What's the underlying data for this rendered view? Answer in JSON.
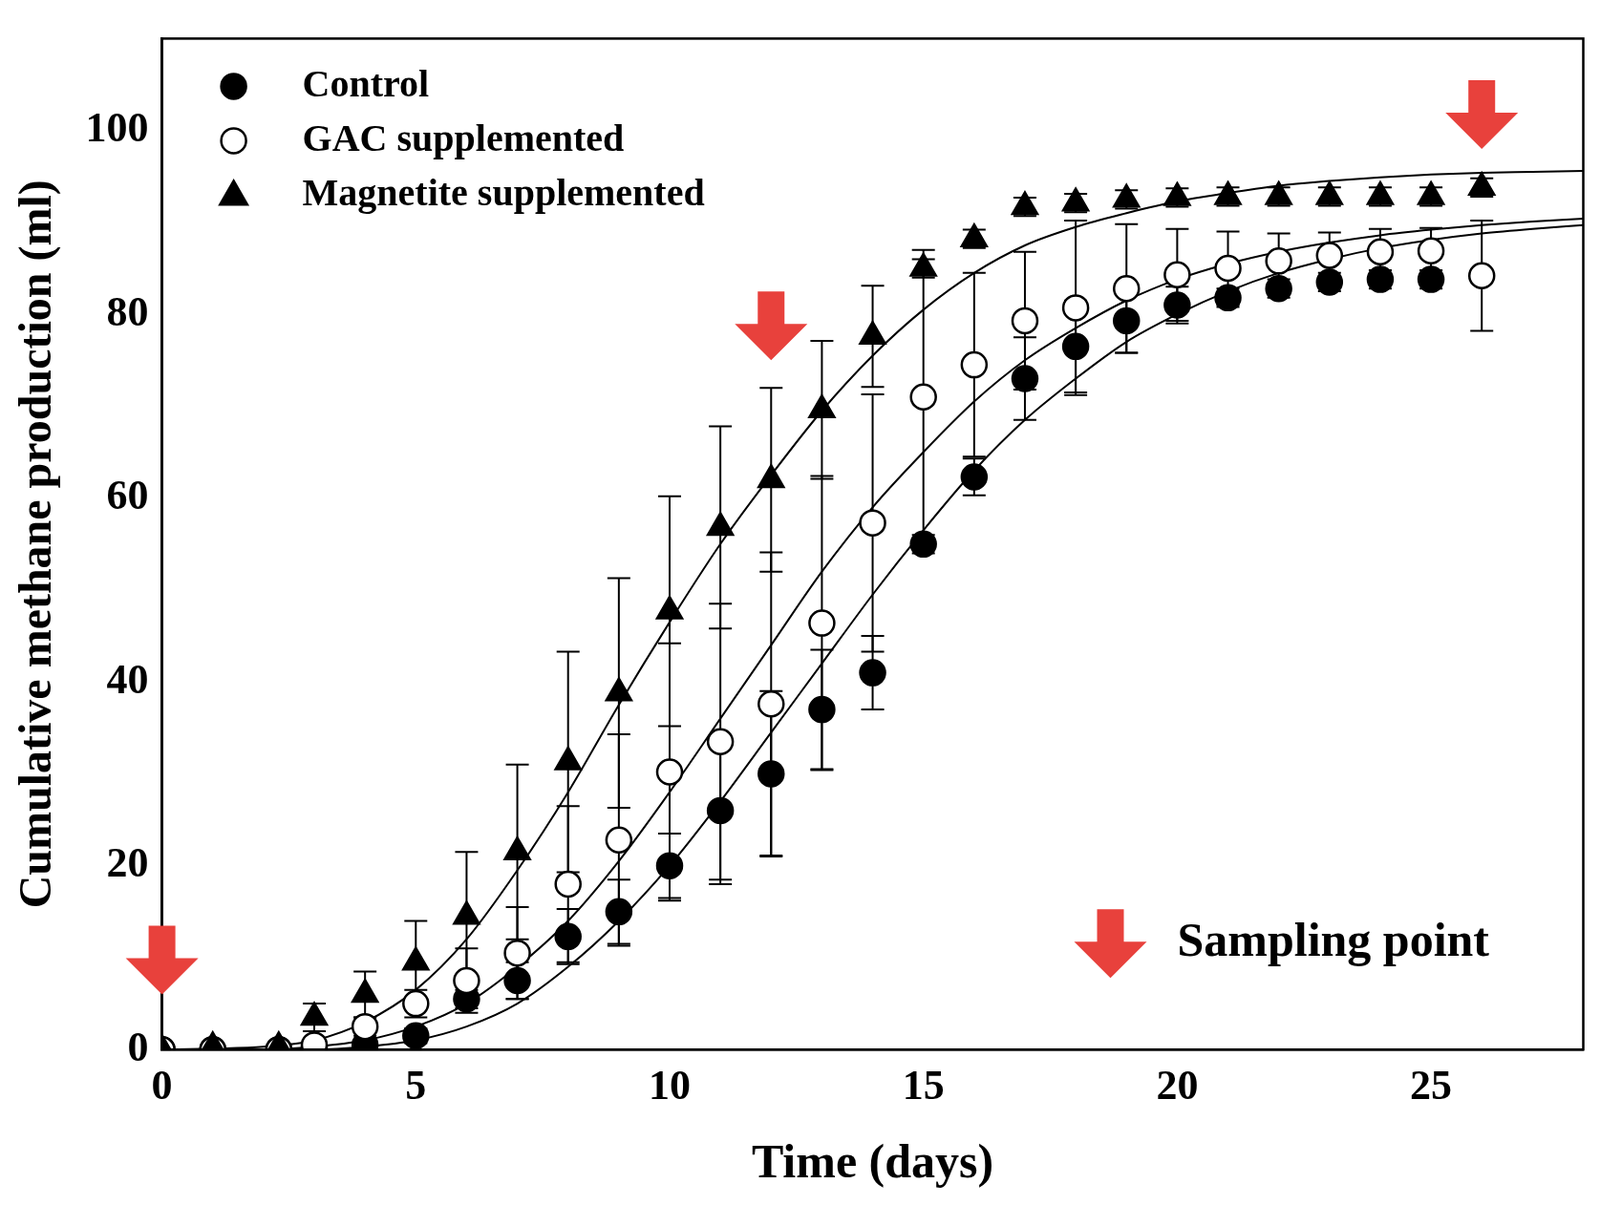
{
  "chart_data": {
    "type": "scatter",
    "x_label": "Time (days)",
    "y_label": "Cumulative methane production (ml)",
    "xlim": [
      0,
      28
    ],
    "xticks": [
      0,
      5,
      10,
      15,
      20,
      25
    ],
    "ylim": [
      0,
      110
    ],
    "yticks": [
      0,
      20,
      40,
      60,
      80,
      100
    ],
    "grid": false,
    "legend": "top-left",
    "fit_x": [
      0,
      1,
      2,
      3,
      4,
      5,
      6,
      7,
      8,
      9,
      10,
      11,
      12,
      13,
      14,
      15,
      16,
      17,
      18,
      19,
      20,
      21,
      22,
      23,
      24,
      25,
      26,
      27,
      28
    ],
    "series": [
      {
        "name": "Control",
        "color": "#000000",
        "marker": "circle",
        "line_style": "solid",
        "x": [
          0,
          1,
          2.3,
          3,
          4,
          5,
          6,
          7,
          8,
          9,
          10,
          11,
          12,
          13,
          14,
          15,
          16,
          17,
          18,
          19,
          20,
          21,
          22,
          23,
          24,
          25
        ],
        "values": [
          0,
          0,
          0,
          0.3,
          0.5,
          1.5,
          5.5,
          7.5,
          12.3,
          15,
          20,
          26,
          30,
          37,
          41,
          55,
          62.3,
          73,
          76.5,
          79.3,
          81,
          81.8,
          82.8,
          83.5,
          83.8,
          83.8
        ],
        "errors": [
          0,
          0,
          0,
          0.3,
          0.5,
          0.8,
          1,
          2,
          3,
          3.5,
          3.5,
          8,
          9,
          6.5,
          4,
          1,
          2,
          4.5,
          5,
          3.5,
          2,
          1,
          1,
          1,
          1,
          1
        ],
        "fit": [
          0,
          0,
          0,
          0,
          0.3,
          1,
          2.5,
          5,
          9,
          14,
          20,
          27,
          34.5,
          42,
          49.5,
          56.5,
          63,
          68.5,
          73,
          77,
          80,
          82.5,
          84.5,
          86,
          87.2,
          88.1,
          88.8,
          89.3,
          89.7
        ]
      },
      {
        "name": "GAC supplemented",
        "color": "#000000",
        "marker": "open_circle",
        "line_style": "solid",
        "x": [
          0,
          1,
          2.3,
          3,
          4,
          5,
          6,
          7,
          8,
          9,
          10,
          11,
          12,
          13,
          14,
          15,
          16,
          17,
          18,
          19,
          20,
          21,
          22,
          23,
          24,
          25,
          26
        ],
        "values": [
          0,
          0,
          0,
          0.5,
          2.5,
          5,
          7.5,
          10.5,
          18,
          22.8,
          30.2,
          33.5,
          37.6,
          46.4,
          57.3,
          71,
          74.5,
          79.3,
          80.7,
          82.8,
          84.3,
          85,
          85.8,
          86.4,
          86.8,
          86.9,
          84.2
        ],
        "errors": [
          0,
          0,
          0,
          0.5,
          1,
          1.5,
          3.5,
          5,
          8.5,
          11.5,
          14,
          15,
          16.5,
          16,
          14,
          16,
          10,
          7.5,
          9.5,
          7,
          5,
          4,
          3,
          2.5,
          2.5,
          2.5,
          6
        ],
        "fit": [
          0,
          0,
          0,
          0.3,
          1,
          2.5,
          5,
          9,
          14,
          20.5,
          28,
          36,
          44,
          52,
          59,
          65,
          70.5,
          75,
          78.5,
          81.5,
          83.8,
          85.5,
          86.8,
          87.8,
          88.6,
          89.2,
          89.7,
          90.1,
          90.4
        ]
      },
      {
        "name": "Magnetite supplemented",
        "color": "#000000",
        "marker": "triangle",
        "line_style": "solid",
        "x": [
          0,
          1,
          2.3,
          3,
          4,
          5,
          6,
          7,
          8,
          9,
          10,
          11,
          12,
          13,
          14,
          15,
          16,
          17,
          18,
          19,
          20,
          21,
          22,
          23,
          24,
          25,
          26
        ],
        "values": [
          0,
          0.3,
          0.3,
          3.5,
          6,
          9.5,
          14.5,
          21.5,
          31.3,
          38.8,
          47.7,
          56.8,
          62,
          69.6,
          77.6,
          85,
          88.2,
          91.7,
          92.1,
          92.5,
          92.7,
          92.8,
          92.8,
          92.8,
          92.8,
          92.8,
          93.8
        ],
        "errors": [
          0,
          0,
          0,
          1.5,
          2.5,
          4.5,
          7,
          9.5,
          12,
          12.5,
          12.5,
          11,
          10,
          7.5,
          5.5,
          1,
          1,
          1,
          1,
          1,
          1,
          1,
          1,
          1,
          1,
          1,
          1
        ],
        "fit": [
          0,
          0.1,
          0.3,
          1,
          3,
          6.5,
          12,
          19.5,
          28,
          37.5,
          46.5,
          55,
          62.5,
          69.5,
          75.5,
          80.5,
          84.5,
          87.5,
          89.5,
          91,
          92.3,
          93.2,
          94,
          94.5,
          94.9,
          95.2,
          95.4,
          95.5,
          95.6
        ]
      }
    ],
    "annotations": [
      {
        "text": "Sampling point",
        "marker": "arrow",
        "color": "#e8413c",
        "points": [
          {
            "x": 0,
            "y": 6
          },
          {
            "x": 12,
            "y": 75
          },
          {
            "x": 26,
            "y": 98
          }
        ]
      }
    ]
  }
}
